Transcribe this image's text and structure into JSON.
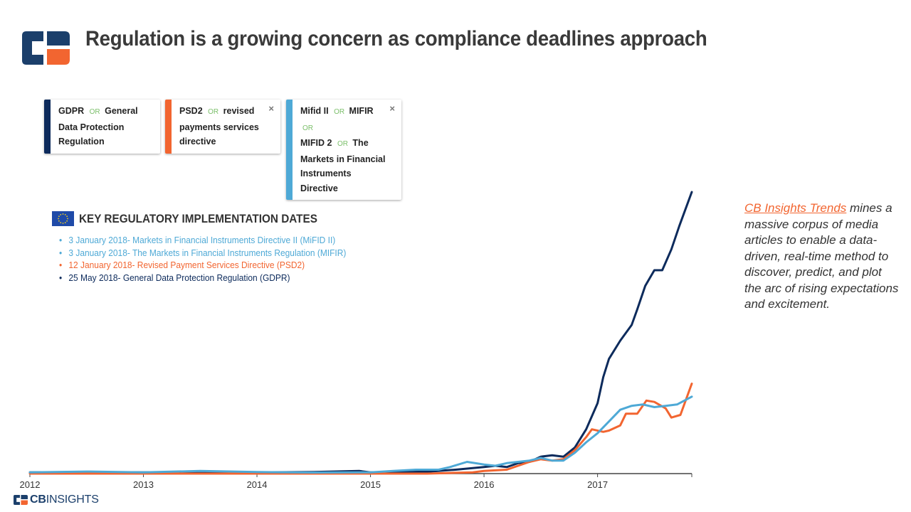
{
  "title": "Regulation is a growing concern as compliance deadlines approach",
  "chips": [
    {
      "lines": [
        [
          "GDPR",
          "OR",
          "General"
        ],
        [
          "Data Protection"
        ],
        [
          "Regulation"
        ]
      ],
      "color": "#0d2b5c",
      "close": ""
    },
    {
      "lines": [
        [
          "PSD2",
          "OR",
          "revised"
        ],
        [
          "payments services"
        ],
        [
          "directive"
        ]
      ],
      "color": "#f26530",
      "close": "×"
    },
    {
      "lines": [
        [
          "Mifid II",
          "OR",
          "MIFIR",
          "OR"
        ],
        [
          "MIFID 2",
          "OR",
          "The"
        ],
        [
          "Markets in Financial"
        ],
        [
          "Instruments"
        ],
        [
          "Directive"
        ]
      ],
      "color": "#4ea9d6",
      "close": "×"
    }
  ],
  "regulatory": {
    "title": "KEY REGULATORY IMPLEMENTATION DATES",
    "items": [
      {
        "text": "3 January 2018- Markets in Financial Instruments Directive II (MiFID II)",
        "color": "#4ea9d6"
      },
      {
        "text": "3 January 2018- The Markets in Financial Instruments Regulation (MIFIR)",
        "color": "#4ea9d6"
      },
      {
        "text": "12 January 2018- Revised Payment Services Directive (PSD2)",
        "color": "#f26530"
      },
      {
        "text": "25 May 2018- General Data Protection Regulation (GDPR)",
        "color": "#0d2b5c"
      }
    ]
  },
  "side": {
    "link": "CB Insights Trends",
    "text": " mines a massive corpus of media articles to enable a data-driven, real-time method to discover, predict, and plot the arc of rising expectations and excitement."
  },
  "footer": {
    "brand_bold": "CB",
    "brand_rest": "INSIGHTS"
  },
  "chart_data": {
    "type": "line",
    "x_tick_labels": [
      "2012",
      "2013",
      "2014",
      "2015",
      "2016",
      "2017"
    ],
    "xlim": [
      2012.0,
      2017.83
    ],
    "ylim": [
      0,
      100
    ],
    "series": [
      {
        "color": "#0d2b5c",
        "points": [
          [
            2012.0,
            0.5
          ],
          [
            2012.5,
            0.6
          ],
          [
            2013.0,
            0.5
          ],
          [
            2013.5,
            0.6
          ],
          [
            2014.0,
            0.5
          ],
          [
            2014.5,
            0.6
          ],
          [
            2014.9,
            1.0
          ],
          [
            2015.0,
            0.5
          ],
          [
            2015.5,
            0.7
          ],
          [
            2015.75,
            1.5
          ],
          [
            2016.0,
            2.5
          ],
          [
            2016.1,
            3.0
          ],
          [
            2016.2,
            2.5
          ],
          [
            2016.3,
            4.0
          ],
          [
            2016.4,
            4.5
          ],
          [
            2016.5,
            6.5
          ],
          [
            2016.6,
            7.0
          ],
          [
            2016.7,
            6.5
          ],
          [
            2016.8,
            10.0
          ],
          [
            2016.9,
            17.0
          ],
          [
            2017.0,
            27.0
          ],
          [
            2017.05,
            37.0
          ],
          [
            2017.1,
            44.0
          ],
          [
            2017.2,
            51.0
          ],
          [
            2017.3,
            57.0
          ],
          [
            2017.35,
            63.0
          ],
          [
            2017.42,
            72.0
          ],
          [
            2017.5,
            78.0
          ],
          [
            2017.57,
            78.0
          ],
          [
            2017.65,
            86.0
          ],
          [
            2017.72,
            95.0
          ],
          [
            2017.83,
            108.0
          ]
        ]
      },
      {
        "color": "#f26530",
        "points": [
          [
            2012.0,
            0.0
          ],
          [
            2015.0,
            0.0
          ],
          [
            2015.5,
            0.0
          ],
          [
            2015.9,
            0.5
          ],
          [
            2016.0,
            1.0
          ],
          [
            2016.2,
            1.5
          ],
          [
            2016.3,
            3.0
          ],
          [
            2016.4,
            4.5
          ],
          [
            2016.5,
            5.5
          ],
          [
            2016.6,
            5.0
          ],
          [
            2016.7,
            5.5
          ],
          [
            2016.8,
            9.0
          ],
          [
            2016.9,
            14.0
          ],
          [
            2016.95,
            17.0
          ],
          [
            2017.05,
            16.0
          ],
          [
            2017.1,
            16.5
          ],
          [
            2017.2,
            18.5
          ],
          [
            2017.25,
            23.0
          ],
          [
            2017.35,
            23.0
          ],
          [
            2017.43,
            28.0
          ],
          [
            2017.5,
            27.5
          ],
          [
            2017.6,
            25.0
          ],
          [
            2017.65,
            21.5
          ],
          [
            2017.73,
            22.5
          ],
          [
            2017.83,
            34.5
          ]
        ]
      },
      {
        "color": "#4ea9d6",
        "points": [
          [
            2012.0,
            0.5
          ],
          [
            2012.5,
            0.8
          ],
          [
            2013.0,
            0.5
          ],
          [
            2013.5,
            1.0
          ],
          [
            2014.0,
            0.6
          ],
          [
            2014.5,
            0.4
          ],
          [
            2015.0,
            0.5
          ],
          [
            2015.2,
            1.0
          ],
          [
            2015.4,
            1.5
          ],
          [
            2015.6,
            1.5
          ],
          [
            2015.7,
            2.5
          ],
          [
            2015.85,
            4.5
          ],
          [
            2016.0,
            3.5
          ],
          [
            2016.1,
            3.0
          ],
          [
            2016.2,
            4.0
          ],
          [
            2016.3,
            4.5
          ],
          [
            2016.4,
            5.0
          ],
          [
            2016.5,
            6.0
          ],
          [
            2016.6,
            5.0
          ],
          [
            2016.7,
            5.0
          ],
          [
            2016.8,
            8.0
          ],
          [
            2016.9,
            12.0
          ],
          [
            2017.0,
            15.5
          ],
          [
            2017.1,
            20.0
          ],
          [
            2017.2,
            24.5
          ],
          [
            2017.3,
            26.0
          ],
          [
            2017.4,
            26.5
          ],
          [
            2017.5,
            25.5
          ],
          [
            2017.6,
            26.0
          ],
          [
            2017.7,
            26.5
          ],
          [
            2017.83,
            29.5
          ]
        ]
      }
    ]
  }
}
